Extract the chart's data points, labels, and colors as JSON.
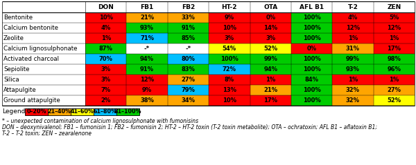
{
  "columns": [
    "DON",
    "FB1",
    "FB2",
    "HT-2",
    "OTA",
    "AFL B1",
    "T-2",
    "ZEN"
  ],
  "rows": [
    "Bentonite",
    "Calcium bentonite",
    "Zeolite",
    "Calcium lignosulphonate",
    "Activated charcoal",
    "Sepiolite",
    "Silica",
    "Attapulgite",
    "Ground attapulgite"
  ],
  "values": [
    [
      "10%",
      "21%",
      "33%",
      "9%",
      "0%",
      "100%",
      "4%",
      "5%"
    ],
    [
      "4%",
      "93%",
      "91%",
      "10%",
      "14%",
      "100%",
      "12%",
      "12%"
    ],
    [
      "1%",
      "71%",
      "85%",
      "3%",
      "3%",
      "100%",
      "1%",
      "1%"
    ],
    [
      "87%",
      "-*",
      "-*",
      "54%",
      "52%",
      "0%",
      "31%",
      "17%"
    ],
    [
      "70%",
      "94%",
      "80%",
      "100%",
      "99%",
      "100%",
      "99%",
      "98%"
    ],
    [
      "3%",
      "91%",
      "83%",
      "72%",
      "94%",
      "100%",
      "93%",
      "96%"
    ],
    [
      "3%",
      "12%",
      "27%",
      "8%",
      "1%",
      "84%",
      "1%",
      "1%"
    ],
    [
      "7%",
      "9%",
      "79%",
      "13%",
      "21%",
      "100%",
      "32%",
      "27%"
    ],
    [
      "2%",
      "38%",
      "34%",
      "10%",
      "17%",
      "100%",
      "32%",
      "52%"
    ]
  ],
  "numeric_values": [
    [
      10,
      21,
      33,
      9,
      0,
      100,
      4,
      5
    ],
    [
      4,
      93,
      91,
      10,
      14,
      100,
      12,
      12
    ],
    [
      1,
      71,
      85,
      3,
      3,
      100,
      1,
      1
    ],
    [
      87,
      -1,
      -1,
      54,
      52,
      0,
      31,
      17
    ],
    [
      70,
      94,
      80,
      100,
      99,
      100,
      99,
      98
    ],
    [
      3,
      91,
      83,
      72,
      94,
      100,
      93,
      96
    ],
    [
      3,
      12,
      27,
      8,
      1,
      84,
      1,
      1
    ],
    [
      7,
      9,
      79,
      13,
      21,
      100,
      32,
      27
    ],
    [
      2,
      38,
      34,
      10,
      17,
      100,
      32,
      52
    ]
  ],
  "color_0_20": "#FF0000",
  "color_21_40": "#FFA500",
  "color_41_60": "#FFFF00",
  "color_61_80": "#00BFFF",
  "color_81_100": "#00CC00",
  "color_special": "#FFFFFF",
  "legend_labels": [
    "0–20%",
    "21–40%",
    "41–60%",
    "61–80%",
    "81–100%"
  ],
  "footnote1": "* – unexpected contamination of calcium lignosulphonate with fumonisins",
  "footnote2": "DON – deoxynivalenol; FB1 – fumonisin 1; FB2 – fumonisin 2; HT-2 – HT-2 toxin (T-2 toxin metabolite); OTA – ochratoxin; AFL B1 – aflatoxin B1;",
  "footnote3": "T-2 – T-2 toxin; ZEN – zearalenone"
}
